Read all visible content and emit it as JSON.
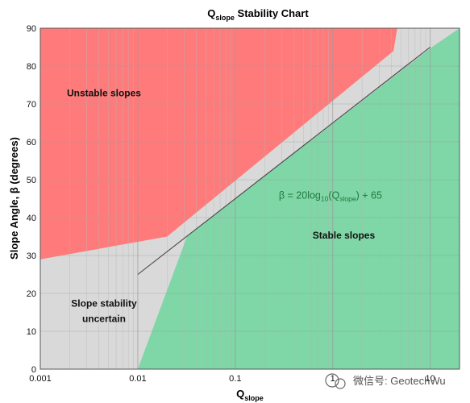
{
  "chart_data": {
    "type": "area",
    "title_main": "Q",
    "title_sub": "slope",
    "title_tail": " Stability Chart",
    "xlabel_main": "Q",
    "xlabel_sub": "slope",
    "ylabel": "Slope Angle, β (degrees)",
    "xscale": "log",
    "xlim": [
      0.001,
      20
    ],
    "ylim": [
      0,
      90
    ],
    "x_ticks": [
      0.001,
      0.01,
      0.1,
      1,
      10
    ],
    "x_tick_labels": [
      "0.001",
      "0.01",
      "0.1",
      "1",
      "10"
    ],
    "y_ticks": [
      0,
      10,
      20,
      30,
      40,
      50,
      60,
      70,
      80,
      90
    ],
    "y_tick_labels": [
      "0",
      "10",
      "20",
      "30",
      "40",
      "50",
      "60",
      "70",
      "80",
      "90"
    ],
    "grid": true,
    "background_color": "#d9d9d9",
    "regions": [
      {
        "name": "Unstable slopes",
        "color": "#ff7b7b",
        "points": [
          [
            0.001,
            29
          ],
          [
            0.001,
            90
          ],
          [
            4.6,
            90
          ],
          [
            4.2,
            84
          ],
          [
            0.02,
            35
          ],
          [
            0.001,
            29
          ]
        ]
      },
      {
        "name": "Stable slopes",
        "color": "#7fd6a6",
        "points": [
          [
            0.01,
            0
          ],
          [
            20,
            0
          ],
          [
            20,
            90
          ],
          [
            10.4,
            85
          ],
          [
            0.032,
            35
          ],
          [
            0.01,
            0
          ]
        ]
      }
    ],
    "series": [
      {
        "type": "line",
        "color": "#444444",
        "x": [
          0.01,
          10
        ],
        "y": [
          25,
          85
        ]
      }
    ],
    "annotations": [
      {
        "text": "Unstable slopes",
        "x": 0.0045,
        "y": 72
      },
      {
        "text": "Stable slopes",
        "x": 1.3,
        "y": 34.5
      },
      {
        "text": "Slope stability",
        "x": 0.0045,
        "y": 16.5
      },
      {
        "text": "uncertain",
        "x": 0.0045,
        "y": 12.5
      }
    ],
    "formula": {
      "prefix": "β = 20log",
      "sub1": "10",
      "mid": "(Q",
      "sub2": "slope",
      "suffix": ") + 65",
      "x": 0.28,
      "y": 45
    }
  },
  "watermark": "微信号: GeotechWu"
}
